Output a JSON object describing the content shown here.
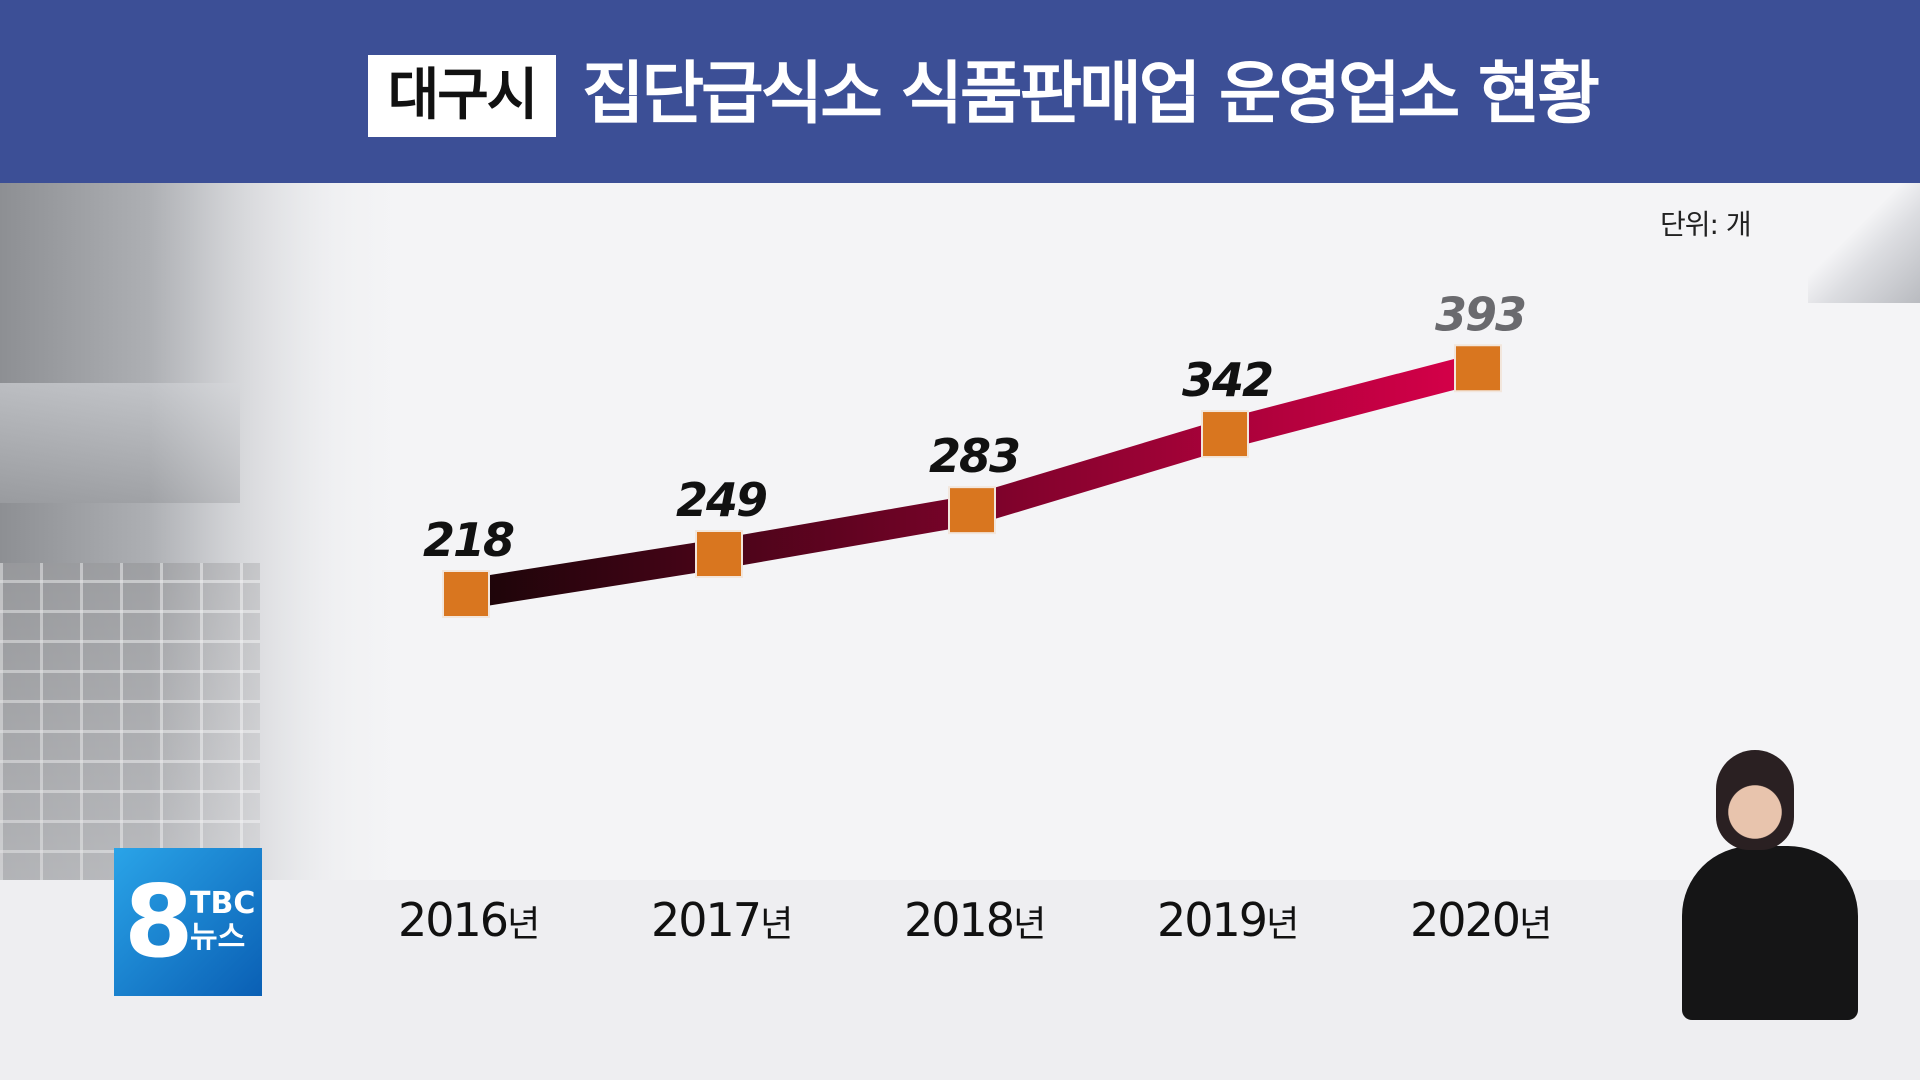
{
  "header": {
    "region": "대구시",
    "title": "집단급식소 식품판매업 운영업소 현황"
  },
  "unit_label": "단위: 개",
  "logo": {
    "number": "8",
    "brand": "TBC",
    "label": "뉴스"
  },
  "colors": {
    "header_bg": "#3c4f96",
    "marker": "#d9761f",
    "line_start": "#1a0508",
    "line_end": "#d8004a"
  },
  "chart_data": {
    "type": "line",
    "title": "집단급식소 식품판매업 운영업소 현황",
    "unit": "단위: 개",
    "categories": [
      "2016년",
      "2017년",
      "2018년",
      "2019년",
      "2020년"
    ],
    "category_years": [
      "2016",
      "2017",
      "2018",
      "2019",
      "2020"
    ],
    "category_suffix": "년",
    "values": [
      218,
      249,
      283,
      342,
      393
    ],
    "value_labels": [
      "218",
      "249",
      "283",
      "342",
      "393"
    ],
    "ylim": [
      0,
      420
    ],
    "grid": false,
    "legend": "none"
  }
}
